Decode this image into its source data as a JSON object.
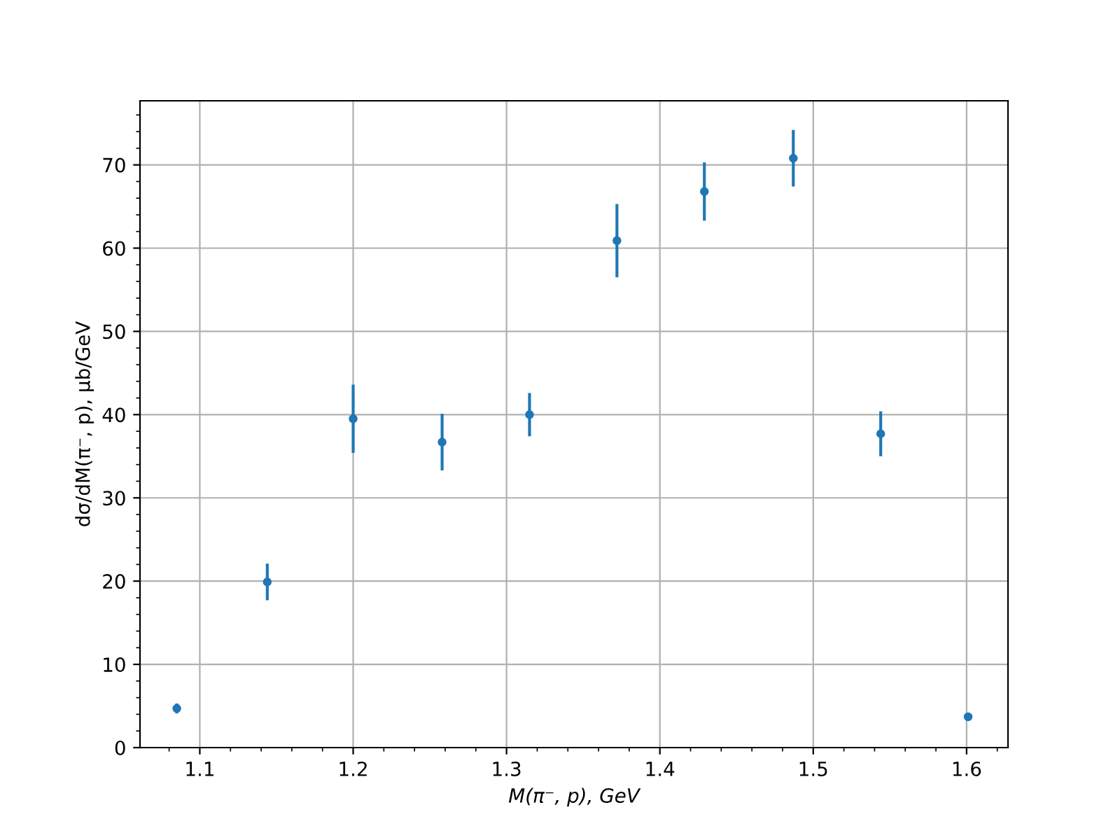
{
  "chart_data": {
    "type": "scatter",
    "xlabel": "M(π⁻, p), GeV",
    "ylabel": "dσ/dM(π⁻, p), μb/GeV",
    "x": [
      1.085,
      1.144,
      1.2,
      1.258,
      1.315,
      1.372,
      1.429,
      1.487,
      1.544,
      1.601
    ],
    "series": [
      {
        "color": "#1f77b4",
        "values": [
          4.7,
          19.9,
          39.5,
          36.7,
          40.0,
          60.9,
          66.8,
          70.8,
          37.7,
          3.7
        ],
        "errors": [
          0.6,
          2.2,
          4.1,
          3.4,
          2.6,
          4.4,
          3.5,
          3.4,
          2.7,
          0.4
        ]
      }
    ],
    "xlim": [
      1.061,
      1.627
    ],
    "xticks": [
      1.1,
      1.2,
      1.3,
      1.4,
      1.5,
      1.6
    ],
    "ylim": [
      0,
      77.7
    ],
    "yticks": [
      0,
      10,
      20,
      30,
      40,
      50,
      60,
      70
    ],
    "grid": true,
    "marker": "circle"
  }
}
